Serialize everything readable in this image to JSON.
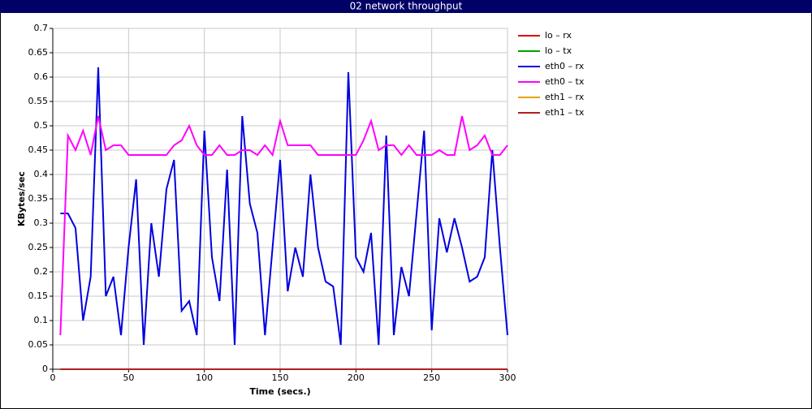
{
  "chart_data": {
    "type": "line",
    "title": "02 network throughput",
    "xlabel": "Time (secs.)",
    "ylabel": "KBytes/sec",
    "x": [
      5,
      10,
      15,
      20,
      25,
      30,
      35,
      40,
      45,
      50,
      55,
      60,
      65,
      70,
      75,
      80,
      85,
      90,
      95,
      100,
      105,
      110,
      115,
      120,
      125,
      130,
      135,
      140,
      145,
      150,
      155,
      160,
      165,
      170,
      175,
      180,
      185,
      190,
      195,
      200,
      205,
      210,
      215,
      220,
      225,
      230,
      235,
      240,
      245,
      250,
      255,
      260,
      265,
      270,
      275,
      280,
      285,
      290,
      295,
      300
    ],
    "xlim": [
      0,
      300
    ],
    "xticks": [
      0,
      50,
      100,
      150,
      200,
      250,
      300
    ],
    "ylim": [
      0,
      0.7
    ],
    "yticks": [
      0,
      0.05,
      0.1,
      0.15,
      0.2,
      0.25,
      0.3,
      0.35,
      0.4,
      0.45,
      0.5,
      0.55,
      0.6,
      0.65,
      0.7
    ],
    "grid": true,
    "legend": "right",
    "series": [
      {
        "name": "lo – rx",
        "color": "#e00000",
        "values": [
          0,
          0,
          0,
          0,
          0,
          0,
          0,
          0,
          0,
          0,
          0,
          0,
          0,
          0,
          0,
          0,
          0,
          0,
          0,
          0,
          0,
          0,
          0,
          0,
          0,
          0,
          0,
          0,
          0,
          0,
          0,
          0,
          0,
          0,
          0,
          0,
          0,
          0,
          0,
          0,
          0,
          0,
          0,
          0,
          0,
          0,
          0,
          0,
          0,
          0,
          0,
          0,
          0,
          0,
          0,
          0,
          0,
          0,
          0,
          0
        ]
      },
      {
        "name": "lo – tx",
        "color": "#00a000",
        "values": [
          0,
          0,
          0,
          0,
          0,
          0,
          0,
          0,
          0,
          0,
          0,
          0,
          0,
          0,
          0,
          0,
          0,
          0,
          0,
          0,
          0,
          0,
          0,
          0,
          0,
          0,
          0,
          0,
          0,
          0,
          0,
          0,
          0,
          0,
          0,
          0,
          0,
          0,
          0,
          0,
          0,
          0,
          0,
          0,
          0,
          0,
          0,
          0,
          0,
          0,
          0,
          0,
          0,
          0,
          0,
          0,
          0,
          0,
          0,
          0
        ]
      },
      {
        "name": "eth0 – rx",
        "color": "#0000e0",
        "values": [
          0.32,
          0.32,
          0.29,
          0.1,
          0.19,
          0.62,
          0.15,
          0.19,
          0.07,
          0.25,
          0.39,
          0.05,
          0.3,
          0.19,
          0.37,
          0.43,
          0.12,
          0.14,
          0.07,
          0.49,
          0.23,
          0.14,
          0.41,
          0.05,
          0.52,
          0.34,
          0.28,
          0.07,
          0.25,
          0.43,
          0.16,
          0.25,
          0.19,
          0.4,
          0.25,
          0.18,
          0.17,
          0.05,
          0.61,
          0.23,
          0.2,
          0.28,
          0.05,
          0.48,
          0.07,
          0.21,
          0.15,
          0.32,
          0.49,
          0.08,
          0.31,
          0.24,
          0.31,
          0.25,
          0.18,
          0.19,
          0.23,
          0.45,
          0.25,
          0.07
        ]
      },
      {
        "name": "eth0 – tx",
        "color": "#ff00ff",
        "values": [
          0.07,
          0.48,
          0.45,
          0.49,
          0.44,
          0.52,
          0.45,
          0.46,
          0.46,
          0.44,
          0.44,
          0.44,
          0.44,
          0.44,
          0.44,
          0.46,
          0.47,
          0.5,
          0.46,
          0.44,
          0.44,
          0.46,
          0.44,
          0.44,
          0.45,
          0.45,
          0.44,
          0.46,
          0.44,
          0.51,
          0.46,
          0.46,
          0.46,
          0.46,
          0.44,
          0.44,
          0.44,
          0.44,
          0.44,
          0.44,
          0.47,
          0.51,
          0.45,
          0.46,
          0.46,
          0.44,
          0.46,
          0.44,
          0.44,
          0.44,
          0.45,
          0.44,
          0.44,
          0.52,
          0.45,
          0.46,
          0.48,
          0.44,
          0.44,
          0.46
        ]
      },
      {
        "name": "eth1 – rx",
        "color": "#e8a000",
        "values": [
          0,
          0,
          0,
          0,
          0,
          0,
          0,
          0,
          0,
          0,
          0,
          0,
          0,
          0,
          0,
          0,
          0,
          0,
          0,
          0,
          0,
          0,
          0,
          0,
          0,
          0,
          0,
          0,
          0,
          0,
          0,
          0,
          0,
          0,
          0,
          0,
          0,
          0,
          0,
          0,
          0,
          0,
          0,
          0,
          0,
          0,
          0,
          0,
          0,
          0,
          0,
          0,
          0,
          0,
          0,
          0,
          0,
          0,
          0,
          0
        ]
      },
      {
        "name": "eth1 – tx",
        "color": "#b02020",
        "values": [
          0,
          0,
          0,
          0,
          0,
          0,
          0,
          0,
          0,
          0,
          0,
          0,
          0,
          0,
          0,
          0,
          0,
          0,
          0,
          0,
          0,
          0,
          0,
          0,
          0,
          0,
          0,
          0,
          0,
          0,
          0,
          0,
          0,
          0,
          0,
          0,
          0,
          0,
          0,
          0,
          0,
          0,
          0,
          0,
          0,
          0,
          0,
          0,
          0,
          0,
          0,
          0,
          0,
          0,
          0,
          0,
          0,
          0,
          0,
          0
        ]
      }
    ]
  }
}
